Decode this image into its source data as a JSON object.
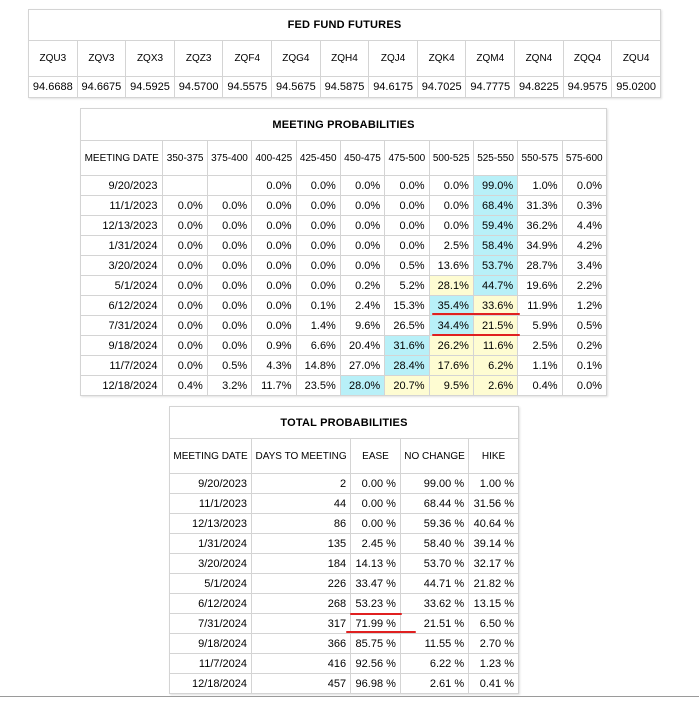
{
  "futures": {
    "title": "FED FUND FUTURES",
    "contracts": [
      "ZQU3",
      "ZQV3",
      "ZQX3",
      "ZQZ3",
      "ZQF4",
      "ZQG4",
      "ZQH4",
      "ZQJ4",
      "ZQK4",
      "ZQM4",
      "ZQN4",
      "ZQQ4",
      "ZQU4"
    ],
    "prices": [
      "94.6688",
      "94.6675",
      "94.5925",
      "94.5700",
      "94.5575",
      "94.5675",
      "94.5875",
      "94.6175",
      "94.7025",
      "94.7775",
      "94.8225",
      "94.9575",
      "95.0200"
    ]
  },
  "meeting": {
    "title": "MEETING PROBABILITIES",
    "headers": [
      "MEETING DATE",
      "350-375",
      "375-400",
      "400-425",
      "425-450",
      "450-475",
      "475-500",
      "500-525",
      "525-550",
      "550-575",
      "575-600"
    ],
    "rows": [
      {
        "date": "9/20/2023",
        "cells": [
          "",
          "",
          "0.0%",
          "0.0%",
          "0.0%",
          "0.0%",
          "0.0%",
          "99.0%",
          "1.0%",
          "0.0%"
        ]
      },
      {
        "date": "11/1/2023",
        "cells": [
          "0.0%",
          "0.0%",
          "0.0%",
          "0.0%",
          "0.0%",
          "0.0%",
          "0.0%",
          "68.4%",
          "31.3%",
          "0.3%"
        ]
      },
      {
        "date": "12/13/2023",
        "cells": [
          "0.0%",
          "0.0%",
          "0.0%",
          "0.0%",
          "0.0%",
          "0.0%",
          "0.0%",
          "59.4%",
          "36.2%",
          "4.4%"
        ]
      },
      {
        "date": "1/31/2024",
        "cells": [
          "0.0%",
          "0.0%",
          "0.0%",
          "0.0%",
          "0.0%",
          "0.0%",
          "2.5%",
          "58.4%",
          "34.9%",
          "4.2%"
        ]
      },
      {
        "date": "3/20/2024",
        "cells": [
          "0.0%",
          "0.0%",
          "0.0%",
          "0.0%",
          "0.0%",
          "0.5%",
          "13.6%",
          "53.7%",
          "28.7%",
          "3.4%"
        ]
      },
      {
        "date": "5/1/2024",
        "cells": [
          "0.0%",
          "0.0%",
          "0.0%",
          "0.0%",
          "0.2%",
          "5.2%",
          "28.1%",
          "44.7%",
          "19.6%",
          "2.2%"
        ]
      },
      {
        "date": "6/12/2024",
        "cells": [
          "0.0%",
          "0.0%",
          "0.0%",
          "0.1%",
          "2.4%",
          "15.3%",
          "35.4%",
          "33.6%",
          "11.9%",
          "1.2%"
        ]
      },
      {
        "date": "7/31/2024",
        "cells": [
          "0.0%",
          "0.0%",
          "0.0%",
          "1.4%",
          "9.6%",
          "26.5%",
          "34.4%",
          "21.5%",
          "5.9%",
          "0.5%"
        ]
      },
      {
        "date": "9/18/2024",
        "cells": [
          "0.0%",
          "0.0%",
          "0.9%",
          "6.6%",
          "20.4%",
          "31.6%",
          "26.2%",
          "11.6%",
          "2.5%",
          "0.2%"
        ]
      },
      {
        "date": "11/7/2024",
        "cells": [
          "0.0%",
          "0.5%",
          "4.3%",
          "14.8%",
          "27.0%",
          "28.4%",
          "17.6%",
          "6.2%",
          "1.1%",
          "0.1%"
        ]
      },
      {
        "date": "12/18/2024",
        "cells": [
          "0.4%",
          "3.2%",
          "11.7%",
          "23.5%",
          "28.0%",
          "20.7%",
          "9.5%",
          "2.6%",
          "0.4%",
          "0.0%"
        ]
      }
    ]
  },
  "total": {
    "title": "TOTAL PROBABILITIES",
    "headers": [
      "MEETING DATE",
      "DAYS TO MEETING",
      "EASE",
      "NO CHANGE",
      "HIKE"
    ],
    "rows": [
      {
        "date": "9/20/2023",
        "days": "2",
        "ease": "0.00 %",
        "no_change": "99.00 %",
        "hike": "1.00 %"
      },
      {
        "date": "11/1/2023",
        "days": "44",
        "ease": "0.00 %",
        "no_change": "68.44 %",
        "hike": "31.56 %"
      },
      {
        "date": "12/13/2023",
        "days": "86",
        "ease": "0.00 %",
        "no_change": "59.36 %",
        "hike": "40.64 %"
      },
      {
        "date": "1/31/2024",
        "days": "135",
        "ease": "2.45 %",
        "no_change": "58.40 %",
        "hike": "39.14 %"
      },
      {
        "date": "3/20/2024",
        "days": "184",
        "ease": "14.13 %",
        "no_change": "53.70 %",
        "hike": "32.17 %"
      },
      {
        "date": "5/1/2024",
        "days": "226",
        "ease": "33.47 %",
        "no_change": "44.71 %",
        "hike": "21.82 %"
      },
      {
        "date": "6/12/2024",
        "days": "268",
        "ease": "53.23 %",
        "no_change": "33.62 %",
        "hike": "13.15 %"
      },
      {
        "date": "7/31/2024",
        "days": "317",
        "ease": "71.99 %",
        "no_change": "21.51 %",
        "hike": "6.50 %"
      },
      {
        "date": "9/18/2024",
        "days": "366",
        "ease": "85.75 %",
        "no_change": "11.55 %",
        "hike": "2.70 %"
      },
      {
        "date": "11/7/2024",
        "days": "416",
        "ease": "92.56 %",
        "no_change": "6.22 %",
        "hike": "1.23 %"
      },
      {
        "date": "12/18/2024",
        "days": "457",
        "ease": "96.98 %",
        "no_change": "2.61 %",
        "hike": "0.41 %"
      }
    ]
  },
  "colors": {
    "highlight_blue": "#b8f0f8",
    "highlight_yellow": "#fefcd2",
    "annotation_red": "#e02020"
  }
}
